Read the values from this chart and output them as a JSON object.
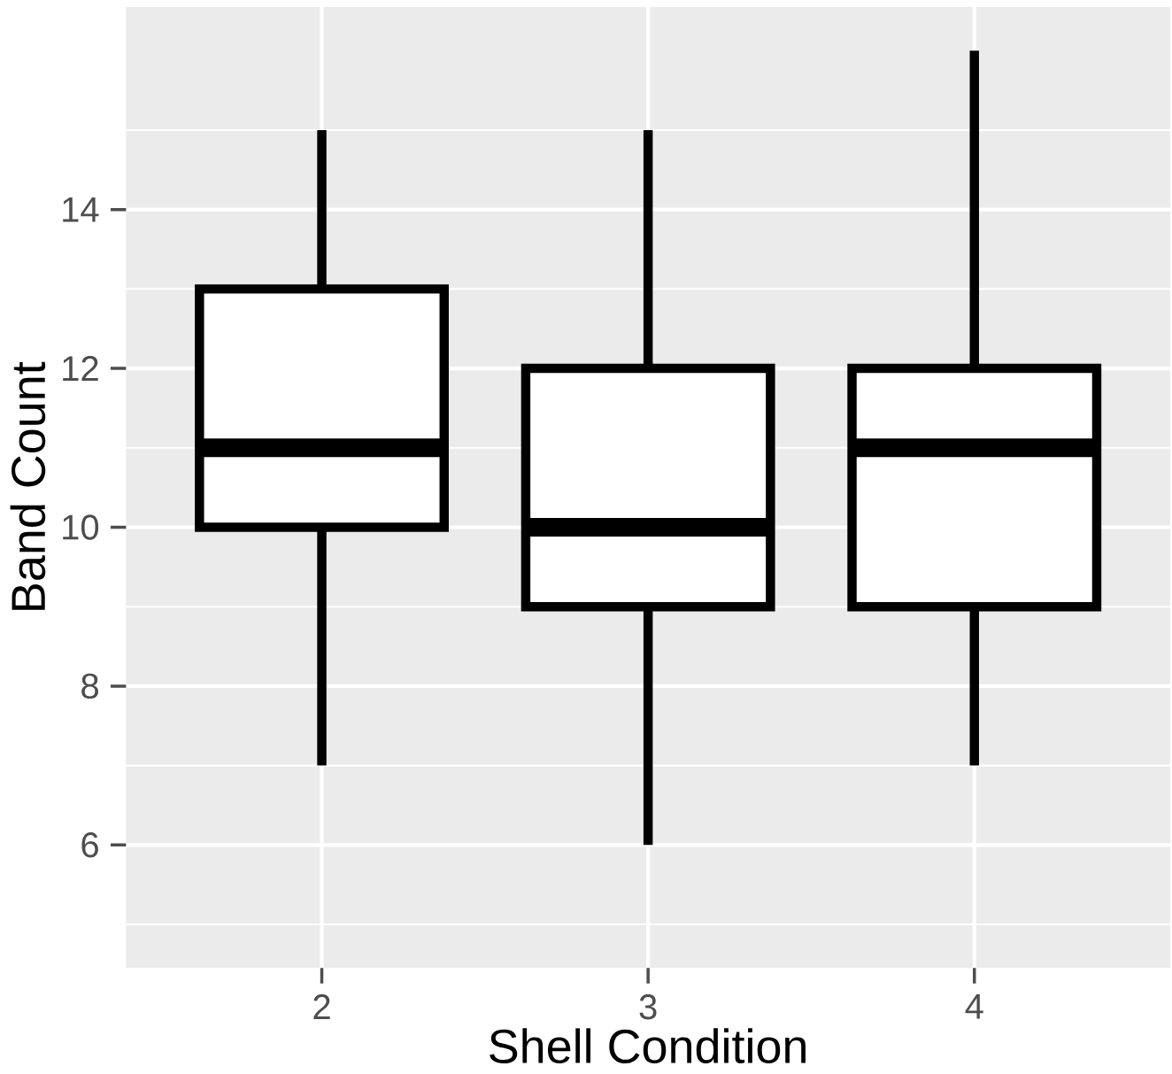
{
  "chart_data": {
    "type": "box",
    "xlabel": "Shell Condition",
    "ylabel": "Band Count",
    "categories": [
      "2",
      "3",
      "4"
    ],
    "boxes": [
      {
        "low": 7,
        "q1": 10,
        "median": 11,
        "q3": 13,
        "high": 15
      },
      {
        "low": 6,
        "q1": 9,
        "median": 10,
        "q3": 12,
        "high": 15
      },
      {
        "low": 7,
        "q1": 9,
        "median": 11,
        "q3": 12,
        "high": 16
      }
    ],
    "ylim": [
      4.45,
      16.55
    ],
    "yticks": [
      6,
      8,
      10,
      12,
      14
    ],
    "grid": true
  }
}
